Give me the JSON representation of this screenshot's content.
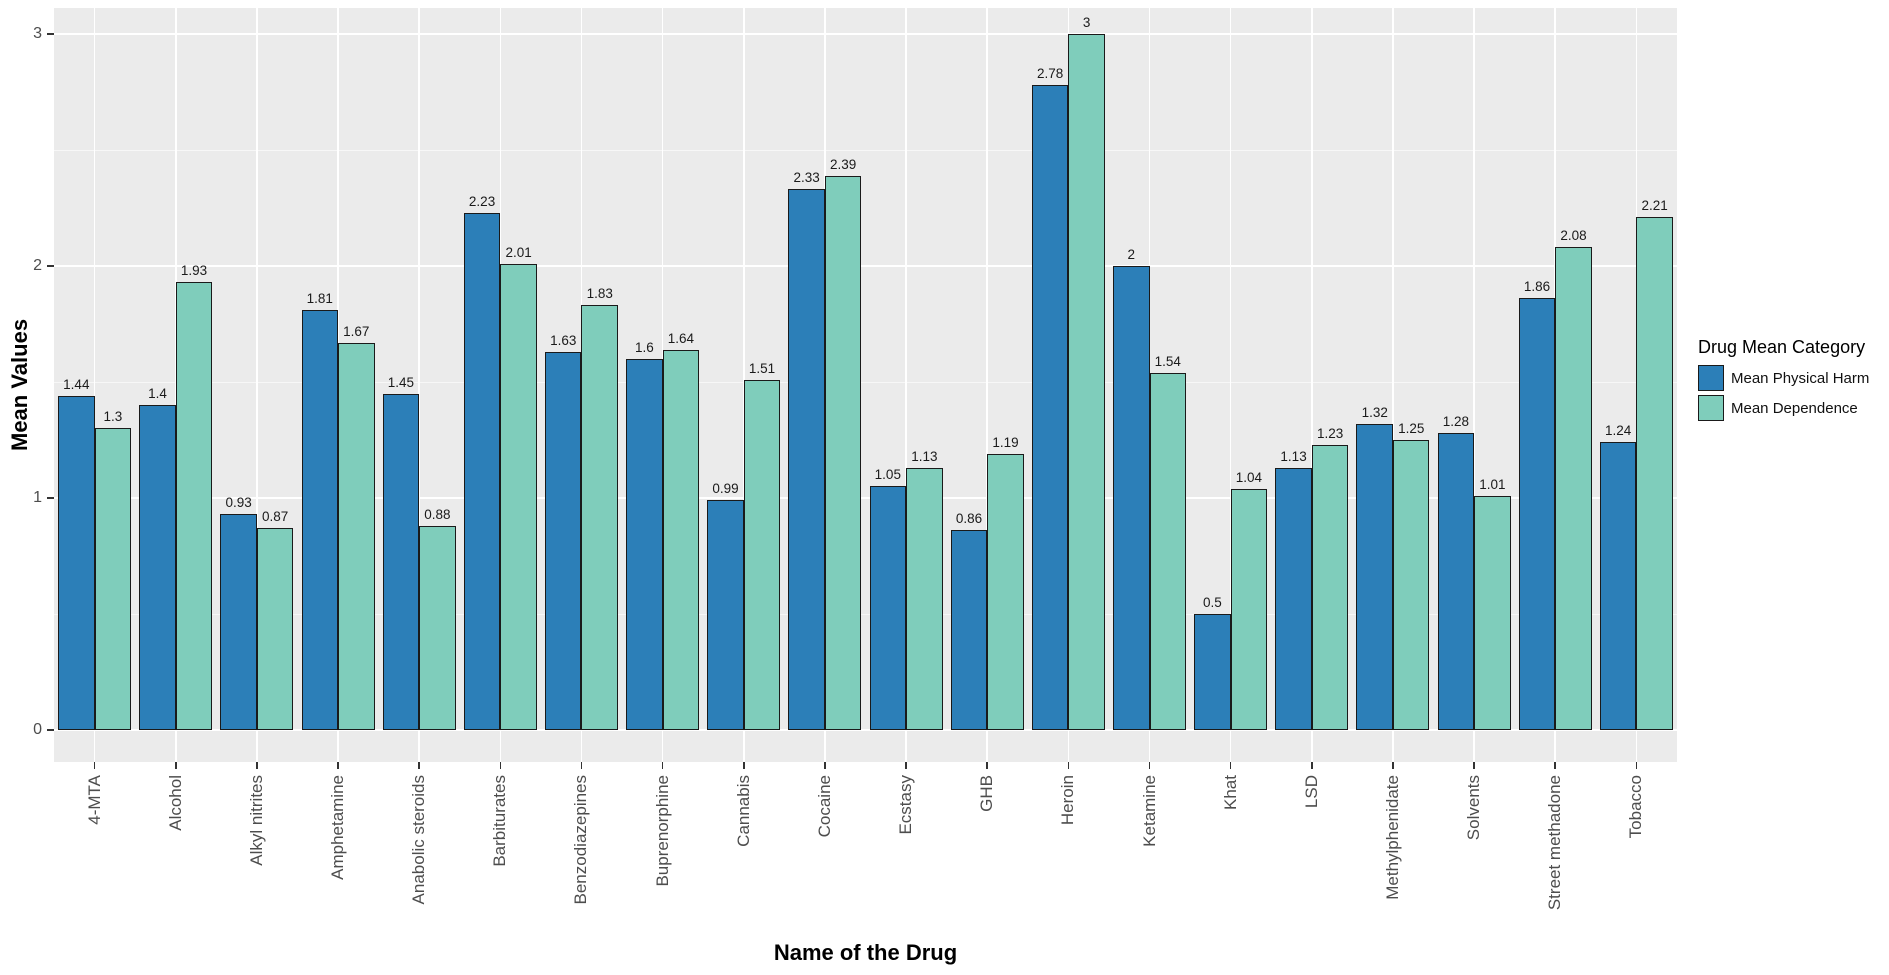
{
  "chart_data": {
    "type": "bar",
    "title": "",
    "xlabel": "Name of the Drug",
    "ylabel": "Mean Values",
    "categories": [
      "4-MTA",
      "Alcohol",
      "Alkyl nitrites",
      "Amphetamine",
      "Anabolic steroids",
      "Barbiturates",
      "Benzodiazepines",
      "Buprenorphine",
      "Cannabis",
      "Cocaine",
      "Ecstasy",
      "GHB",
      "Heroin",
      "Ketamine",
      "Khat",
      "LSD",
      "Methylphenidate",
      "Solvents",
      "Street methadone",
      "Tobacco"
    ],
    "series": [
      {
        "name": "Mean Physical Harm",
        "color": "#2C7FB8",
        "values": [
          1.44,
          1.4,
          0.93,
          1.81,
          1.45,
          2.23,
          1.63,
          1.6,
          0.99,
          2.33,
          1.05,
          0.86,
          2.78,
          2,
          0.5,
          1.13,
          1.32,
          1.28,
          1.86,
          1.24
        ],
        "labels": [
          "1.44",
          "1.4",
          "0.93",
          "1.81",
          "1.45",
          "2.23",
          "1.63",
          "1.6",
          "0.99",
          "2.33",
          "1.05",
          "0.86",
          "2.78",
          "2",
          "0.5",
          "1.13",
          "1.32",
          "1.28",
          "1.86",
          "1.24"
        ]
      },
      {
        "name": "Mean Dependence",
        "color": "#7FCDBB",
        "values": [
          1.3,
          1.93,
          0.87,
          1.67,
          0.88,
          2.01,
          1.83,
          1.64,
          1.51,
          2.39,
          1.13,
          1.19,
          3,
          1.54,
          1.04,
          1.23,
          1.25,
          1.01,
          2.08,
          2.21
        ],
        "labels": [
          "1.3",
          "1.93",
          "0.87",
          "1.67",
          "0.88",
          "2.01",
          "1.83",
          "1.64",
          "1.51",
          "2.39",
          "1.13",
          "1.19",
          "3",
          "1.54",
          "1.04",
          "1.23",
          "1.25",
          "1.01",
          "2.08",
          "2.21"
        ]
      }
    ],
    "ylim": [
      0,
      3
    ],
    "yticks_major": [
      0,
      1,
      2,
      3
    ],
    "ytick_labels": [
      "0",
      "1",
      "2",
      "3"
    ],
    "yticks_minor": [
      0.5,
      1.5,
      2.5
    ],
    "grid": true,
    "legend": {
      "title": "Drug Mean Category",
      "position": "right"
    },
    "colors": {
      "panel_background": "#EBEBEB",
      "gridline": "#FFFFFF",
      "bar_outline": "#1A1A1A",
      "axis_text": "#4D4D4D",
      "label_text": "#1A1A1A"
    }
  }
}
